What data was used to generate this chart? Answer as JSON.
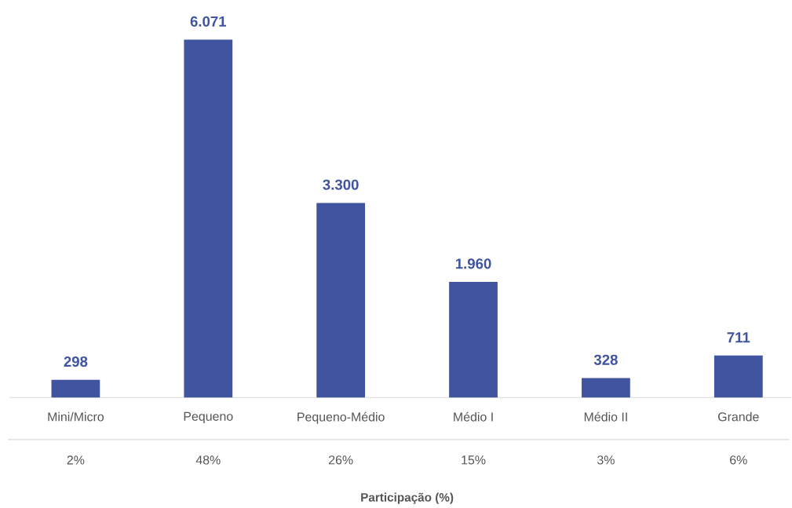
{
  "chart_data": {
    "type": "bar",
    "categories": [
      "Mini/Micro",
      "Pequeno",
      "Pequeno-Médio",
      "Médio I",
      "Médio II",
      "Grande"
    ],
    "values": [
      298,
      6071,
      3300,
      1960,
      328,
      711
    ],
    "value_labels": [
      "298",
      "6.071",
      "3.300",
      "1.960",
      "328",
      "711"
    ],
    "color": "#4054a0",
    "annotations": [
      "2%",
      "48%",
      "26%",
      "15%",
      "3%",
      "6%",
      "Participação (%)"
    ]
  }
}
